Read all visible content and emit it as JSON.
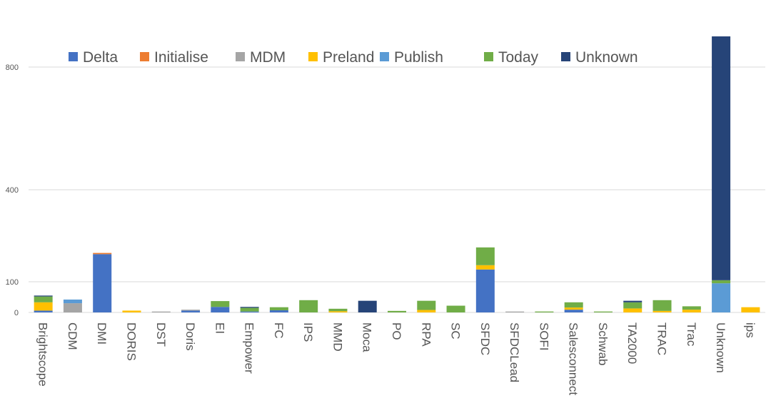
{
  "chart_data": {
    "type": "bar",
    "stacked": true,
    "title": "",
    "xlabel": "",
    "ylabel": "",
    "ylim": [
      0,
      900
    ],
    "y_ticks": [
      0,
      100,
      400,
      800
    ],
    "grid": true,
    "legend_position": "top",
    "categories": [
      "Brightscope",
      "CDM",
      "DMI",
      "DORIS",
      "DST",
      "Doris",
      "EI",
      "Empower",
      "FC",
      "IPS",
      "MMD",
      "Moca",
      "PO",
      "RPA",
      "SC",
      "SFDC",
      "SFDCLead",
      "SOFI",
      "Salesconnect",
      "Schwab",
      "TA2000",
      "TRAC",
      "Trac",
      "Unknown",
      "ips"
    ],
    "series": [
      {
        "name": "Delta",
        "color": "#4472C4",
        "values": [
          6,
          0,
          190,
          0,
          0,
          6,
          18,
          3,
          7,
          0,
          0,
          0,
          0,
          0,
          0,
          140,
          0,
          0,
          9,
          0,
          0,
          0,
          0,
          0,
          0
        ]
      },
      {
        "name": "Initialise",
        "color": "#ED7D31",
        "values": [
          0,
          0,
          4,
          0,
          0,
          0,
          0,
          0,
          0,
          0,
          0,
          0,
          0,
          0,
          0,
          0,
          0,
          0,
          0,
          0,
          0,
          0,
          0,
          0,
          0
        ]
      },
      {
        "name": "MDM",
        "color": "#A5A5A5",
        "values": [
          0,
          30,
          0,
          0,
          3,
          3,
          0,
          0,
          0,
          0,
          0,
          0,
          0,
          0,
          0,
          0,
          3,
          0,
          0,
          0,
          0,
          0,
          0,
          0,
          0
        ]
      },
      {
        "name": "Preland",
        "color": "#FFC000",
        "values": [
          27,
          0,
          0,
          6,
          0,
          0,
          0,
          0,
          0,
          0,
          4,
          0,
          0,
          8,
          0,
          14,
          0,
          0,
          7,
          0,
          13,
          5,
          9,
          0,
          17
        ]
      },
      {
        "name": "Publish",
        "color": "#5B9BD5",
        "values": [
          0,
          12,
          0,
          0,
          0,
          0,
          0,
          0,
          0,
          0,
          0,
          0,
          0,
          0,
          0,
          0,
          0,
          0,
          0,
          0,
          0,
          0,
          0,
          95,
          0
        ]
      },
      {
        "name": "Today",
        "color": "#70AD47",
        "values": [
          19,
          0,
          0,
          0,
          0,
          0,
          19,
          12,
          10,
          40,
          8,
          0,
          5,
          30,
          22,
          58,
          0,
          3,
          17,
          3,
          20,
          35,
          11,
          10,
          0
        ]
      },
      {
        "name": "Unknown",
        "color": "#264478",
        "values": [
          3,
          0,
          0,
          0,
          0,
          0,
          0,
          3,
          0,
          0,
          0,
          38,
          0,
          0,
          0,
          0,
          0,
          0,
          0,
          0,
          5,
          0,
          0,
          795,
          0
        ]
      }
    ]
  }
}
